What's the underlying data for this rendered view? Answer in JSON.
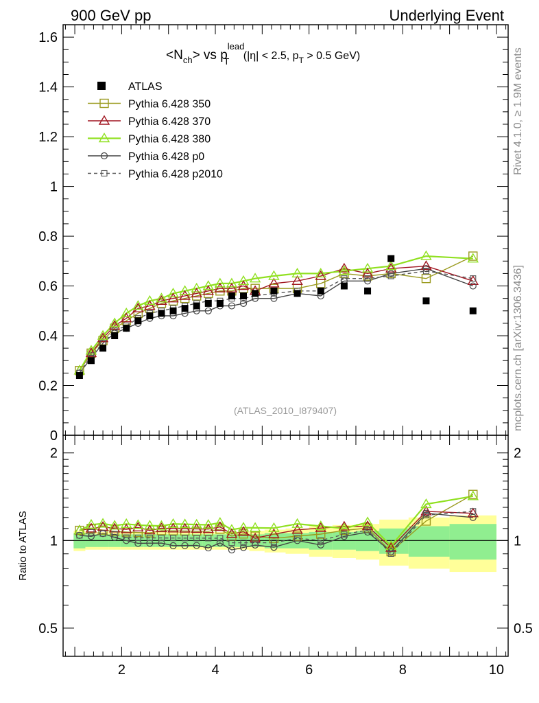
{
  "header": {
    "left": "900 GeV pp",
    "right": "Underlying Event"
  },
  "side_labels": {
    "rivet": "Rivet 4.1.0, ≥ 1.9M events",
    "mcplots": "mcplots.cern.ch [arXiv:1306.3436]"
  },
  "watermark": "(ATLAS_2010_I879407)",
  "title": {
    "pre": "<N",
    "sub1": "ch",
    "mid": "> vs p",
    "sup": "lead",
    "sub2": "T",
    "cond1": " (|η| < 2.5, p",
    "sub3": "T",
    "cond2": " > 0.5 GeV)"
  },
  "colors": {
    "atlas": "#000000",
    "p350": "#9a9a1e",
    "p370": "#a01520",
    "p380": "#90e020",
    "p0": "#444444",
    "p2010": "#555555",
    "band_inner": "#90ee90",
    "band_outer": "#ffff99"
  },
  "chart_data": {
    "type": "scatter",
    "xlabel": "",
    "ylabel_ratio": "Ratio to ATLAS",
    "xlim": [
      0.75,
      10.25
    ],
    "ylim_main": [
      0,
      1.65
    ],
    "ylim_ratio": [
      0.4,
      2.3
    ],
    "x_ticks": [
      "2",
      "4",
      "6",
      "8",
      "10"
    ],
    "y_ticks_main": [
      "0",
      "0.2",
      "0.4",
      "0.6",
      "0.8",
      "1",
      "1.2",
      "1.4",
      "1.6"
    ],
    "y_ticks_ratio": [
      "0.5",
      "1",
      "2"
    ],
    "x": [
      1.1,
      1.35,
      1.6,
      1.85,
      2.1,
      2.35,
      2.6,
      2.85,
      3.1,
      3.35,
      3.6,
      3.85,
      4.1,
      4.35,
      4.6,
      4.85,
      5.25,
      5.75,
      6.25,
      6.75,
      7.25,
      7.75,
      8.5,
      9.5
    ],
    "data": {
      "name": "ATLAS",
      "values": [
        0.24,
        0.3,
        0.35,
        0.4,
        0.43,
        0.46,
        0.48,
        0.49,
        0.5,
        0.51,
        0.52,
        0.53,
        0.53,
        0.56,
        0.56,
        0.57,
        0.58,
        0.57,
        0.58,
        0.6,
        0.58,
        0.71,
        0.54,
        0.5
      ],
      "band_inner": [
        0.06,
        0.05,
        0.05,
        0.05,
        0.05,
        0.05,
        0.05,
        0.05,
        0.05,
        0.05,
        0.05,
        0.05,
        0.05,
        0.05,
        0.05,
        0.05,
        0.06,
        0.06,
        0.07,
        0.07,
        0.08,
        0.1,
        0.12,
        0.14
      ],
      "band_outer": [
        0.08,
        0.07,
        0.07,
        0.07,
        0.07,
        0.07,
        0.07,
        0.07,
        0.07,
        0.07,
        0.07,
        0.07,
        0.07,
        0.07,
        0.07,
        0.08,
        0.09,
        0.1,
        0.12,
        0.13,
        0.14,
        0.18,
        0.2,
        0.22
      ]
    },
    "series": [
      {
        "name": "Pythia 6.428 350",
        "marker": "square",
        "dash": "",
        "key": "p350",
        "values": [
          0.26,
          0.33,
          0.38,
          0.43,
          0.46,
          0.49,
          0.51,
          0.53,
          0.54,
          0.55,
          0.56,
          0.57,
          0.58,
          0.58,
          0.59,
          0.59,
          0.59,
          0.59,
          0.61,
          0.65,
          0.64,
          0.65,
          0.63,
          0.72
        ]
      },
      {
        "name": "Pythia 6.428 370",
        "marker": "triangle",
        "dash": "",
        "key": "p370",
        "values": [
          0.26,
          0.33,
          0.39,
          0.44,
          0.47,
          0.51,
          0.52,
          0.54,
          0.55,
          0.56,
          0.57,
          0.58,
          0.59,
          0.59,
          0.6,
          0.58,
          0.61,
          0.62,
          0.64,
          0.67,
          0.65,
          0.67,
          0.68,
          0.62
        ]
      },
      {
        "name": "Pythia 6.428 380",
        "marker": "triangle",
        "dash": "",
        "key": "p380",
        "values": [
          0.26,
          0.34,
          0.4,
          0.45,
          0.49,
          0.52,
          0.54,
          0.55,
          0.57,
          0.58,
          0.59,
          0.6,
          0.61,
          0.61,
          0.62,
          0.63,
          0.64,
          0.65,
          0.65,
          0.66,
          0.67,
          0.68,
          0.72,
          0.71
        ]
      },
      {
        "name": "Pythia 6.428 p0",
        "marker": "circle",
        "dash": "",
        "key": "p0",
        "values": [
          0.25,
          0.31,
          0.37,
          0.41,
          0.43,
          0.45,
          0.47,
          0.48,
          0.48,
          0.49,
          0.5,
          0.5,
          0.52,
          0.52,
          0.53,
          0.55,
          0.55,
          0.57,
          0.56,
          0.62,
          0.62,
          0.65,
          0.67,
          0.6
        ]
      },
      {
        "name": "Pythia 6.428 p2010",
        "marker": "square-small",
        "dash": "5,4",
        "key": "p2010",
        "values": [
          0.25,
          0.32,
          0.37,
          0.42,
          0.44,
          0.47,
          0.49,
          0.5,
          0.51,
          0.52,
          0.53,
          0.54,
          0.54,
          0.55,
          0.55,
          0.56,
          0.57,
          0.58,
          0.58,
          0.63,
          0.63,
          0.64,
          0.66,
          0.63
        ]
      }
    ]
  }
}
